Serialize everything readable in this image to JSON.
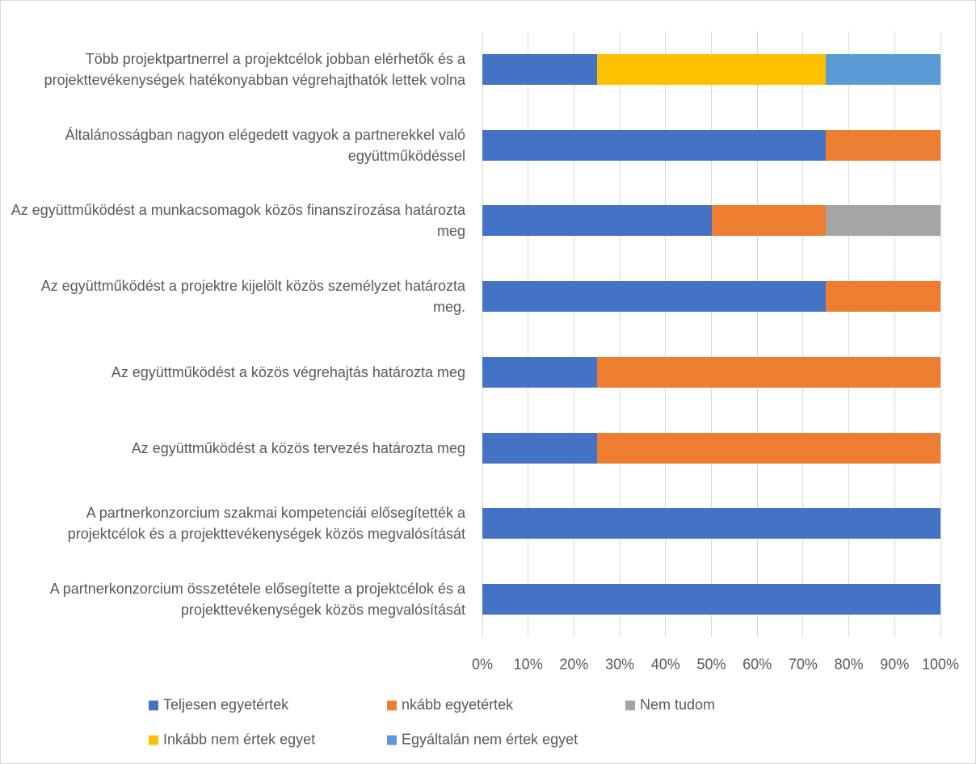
{
  "chart_data": {
    "type": "stacked_bar_horizontal",
    "categories": [
      "Több projektpartnerrel a projektcélok jobban elérhetők és a projekttevékenységek hatékonyabban végrehajthatók lettek volna",
      "Általánosságban nagyon elégedett vagyok a partnerekkel való együttműködéssel",
      "Az együttműködést a munkacsomagok közös finanszírozása határozta meg",
      "Az együttműködést a projektre kijelölt közös személyzet határozta meg.",
      "Az együttműködést a közös végrehajtás határozta meg",
      "Az együttműködést a közös tervezés határozta meg",
      "A partnerkonzorcium szakmai kompetenciái elősegítették a projektcélok és a projekttevékenységek közös megvalósítását",
      "A partnerkonzorcium összetétele elősegítette a projektcélok és a projekttevékenységek közös megvalósítását"
    ],
    "series": [
      {
        "name": "Teljesen egyetértek",
        "color": "#4472c4",
        "values": [
          25,
          75,
          50,
          75,
          25,
          25,
          100,
          100
        ]
      },
      {
        "name": "nkább egyetértek",
        "color": "#ed7d31",
        "values": [
          0,
          25,
          25,
          25,
          75,
          75,
          0,
          0
        ]
      },
      {
        "name": "Nem tudom",
        "color": "#a5a5a5",
        "values": [
          0,
          0,
          25,
          0,
          0,
          0,
          0,
          0
        ]
      },
      {
        "name": "Inkább nem értek egyet",
        "color": "#ffc000",
        "values": [
          50,
          0,
          0,
          0,
          0,
          0,
          0,
          0
        ]
      },
      {
        "name": "Egyáltalán nem értek egyet",
        "color": "#5b9bd5",
        "values": [
          25,
          0,
          0,
          0,
          0,
          0,
          0,
          0
        ]
      }
    ],
    "xlim": [
      0,
      100
    ],
    "xticks": [
      {
        "value": 0,
        "label": "0%"
      },
      {
        "value": 10,
        "label": "10%"
      },
      {
        "value": 20,
        "label": "20%"
      },
      {
        "value": 30,
        "label": "30%"
      },
      {
        "value": 40,
        "label": "40%"
      },
      {
        "value": 50,
        "label": "50%"
      },
      {
        "value": 60,
        "label": "60%"
      },
      {
        "value": 70,
        "label": "70%"
      },
      {
        "value": 80,
        "label": "80%"
      },
      {
        "value": 90,
        "label": "90%"
      },
      {
        "value": 100,
        "label": "100%"
      }
    ],
    "grid": true,
    "legend": "bottom"
  }
}
